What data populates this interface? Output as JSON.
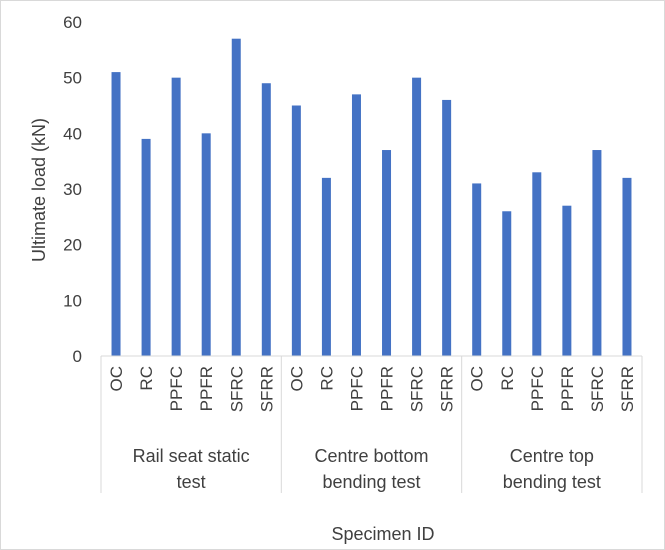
{
  "chart_data": {
    "type": "bar",
    "title": "",
    "xlabel": "Specimen ID",
    "ylabel": "Ultimate load (kN)",
    "ylim": [
      0,
      60
    ],
    "yticks": [
      0,
      10,
      20,
      30,
      40,
      50,
      60
    ],
    "grid": false,
    "legend": "none",
    "bar_color": "#4472C4",
    "groups": [
      {
        "label_lines": [
          "Rail seat static",
          "test"
        ],
        "categories": [
          "OC",
          "RC",
          "PPFC",
          "PPFR",
          "SFRC",
          "SFRR"
        ],
        "values": [
          51,
          39,
          50,
          40,
          57,
          49
        ]
      },
      {
        "label_lines": [
          "Centre bottom",
          "bending test"
        ],
        "categories": [
          "OC",
          "RC",
          "PPFC",
          "PPFR",
          "SFRC",
          "SFRR"
        ],
        "values": [
          45,
          32,
          47,
          37,
          50,
          46
        ]
      },
      {
        "label_lines": [
          "Centre top",
          "bending test"
        ],
        "categories": [
          "OC",
          "RC",
          "PPFC",
          "PPFR",
          "SFRC",
          "SFRR"
        ],
        "values": [
          31,
          26,
          33,
          27,
          37,
          32
        ]
      }
    ]
  }
}
